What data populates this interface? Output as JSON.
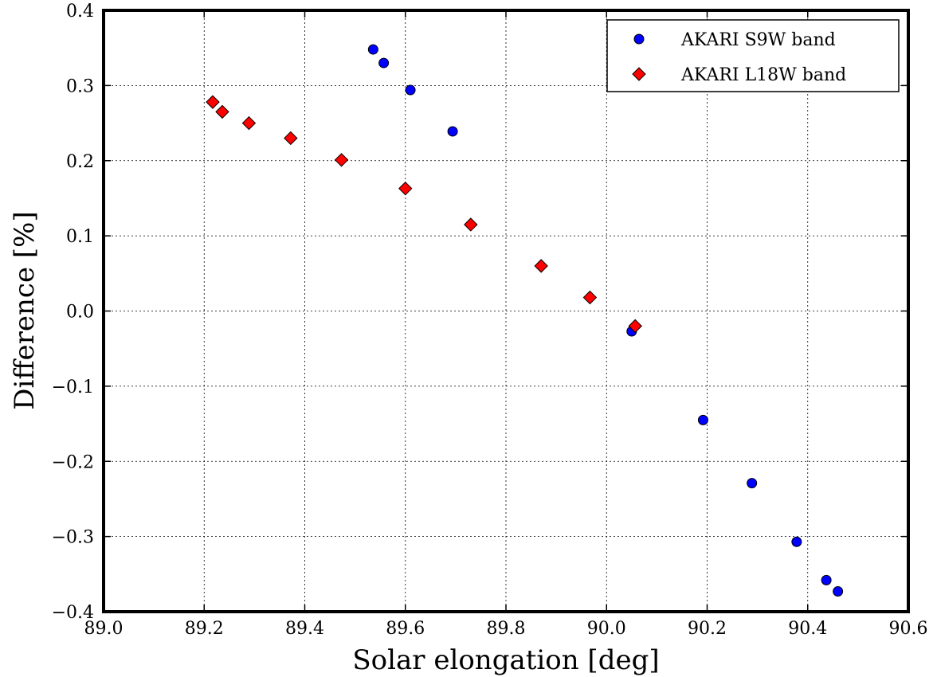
{
  "chart_data": {
    "type": "scatter",
    "title": "",
    "xlabel": "Solar elongation [deg]",
    "ylabel": "Difference [%]",
    "xlim": [
      89.0,
      90.6
    ],
    "ylim": [
      -0.4,
      0.4
    ],
    "xticks": [
      "89.0",
      "89.2",
      "89.4",
      "89.6",
      "89.8",
      "90.0",
      "90.2",
      "90.4",
      "90.6"
    ],
    "yticks": [
      "−0.4",
      "−0.3",
      "−0.2",
      "−0.1",
      "0.0",
      "0.1",
      "0.2",
      "0.3",
      "0.4"
    ],
    "grid": true,
    "legend_position": "top-right",
    "series": [
      {
        "name": "AKARI S9W band",
        "marker": "circle",
        "color": "#0000ff",
        "points": [
          [
            89.536,
            0.348
          ],
          [
            89.557,
            0.33
          ],
          [
            89.61,
            0.294
          ],
          [
            89.694,
            0.239
          ],
          [
            90.05,
            -0.027
          ],
          [
            90.192,
            -0.145
          ],
          [
            90.289,
            -0.229
          ],
          [
            90.378,
            -0.307
          ],
          [
            90.437,
            -0.358
          ],
          [
            90.46,
            -0.373
          ]
        ]
      },
      {
        "name": "AKARI L18W band",
        "marker": "diamond",
        "color": "#ff0000",
        "points": [
          [
            89.217,
            0.278
          ],
          [
            89.236,
            0.265
          ],
          [
            89.289,
            0.25
          ],
          [
            89.372,
            0.23
          ],
          [
            89.473,
            0.201
          ],
          [
            89.6,
            0.163
          ],
          [
            89.73,
            0.115
          ],
          [
            89.87,
            0.06
          ],
          [
            89.967,
            0.018
          ],
          [
            90.057,
            -0.02
          ]
        ]
      }
    ]
  }
}
